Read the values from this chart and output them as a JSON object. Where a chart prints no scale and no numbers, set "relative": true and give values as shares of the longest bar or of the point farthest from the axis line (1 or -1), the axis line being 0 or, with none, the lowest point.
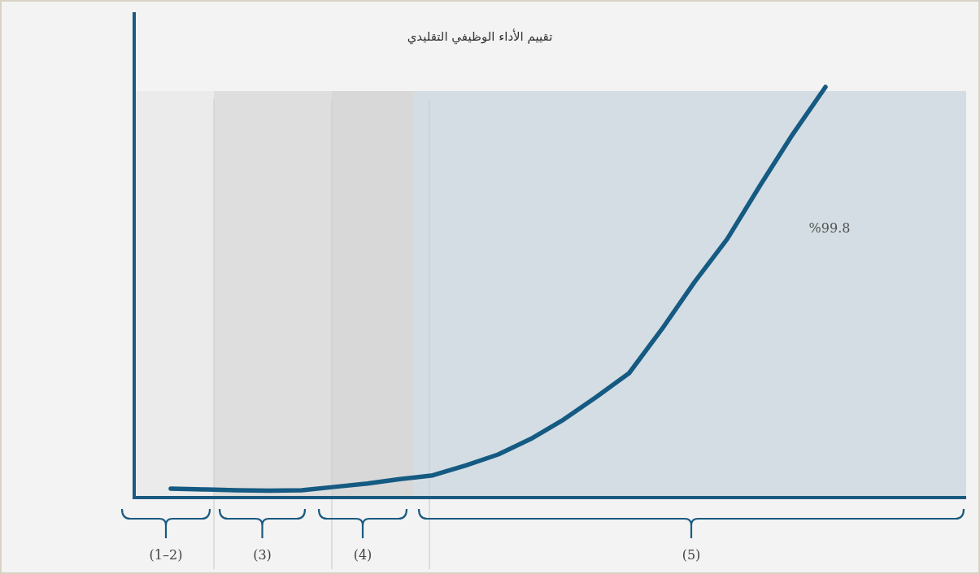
{
  "chart_data": {
    "type": "line",
    "title": "تقييم الأداء الوظيفي التقليدي",
    "relative": true,
    "categories": [
      null,
      null,
      null,
      null,
      null,
      null,
      null,
      null,
      null,
      null,
      null,
      null,
      null,
      null,
      null,
      null,
      null,
      null,
      null,
      null,
      null
    ],
    "series": [
      {
        "color": "#155a82",
        "values": [
          0.022,
          0.02,
          0.018,
          0.017,
          0.018,
          0.026,
          0.034,
          0.045,
          0.054,
          0.078,
          0.105,
          0.143,
          0.19,
          0.245,
          0.303,
          0.41,
          0.525,
          0.63,
          0.76,
          0.885,
          1.0
        ]
      }
    ],
    "annotations": [
      "(1–2)",
      "(3)",
      "(4)",
      "(5)",
      "%99.8"
    ]
  }
}
